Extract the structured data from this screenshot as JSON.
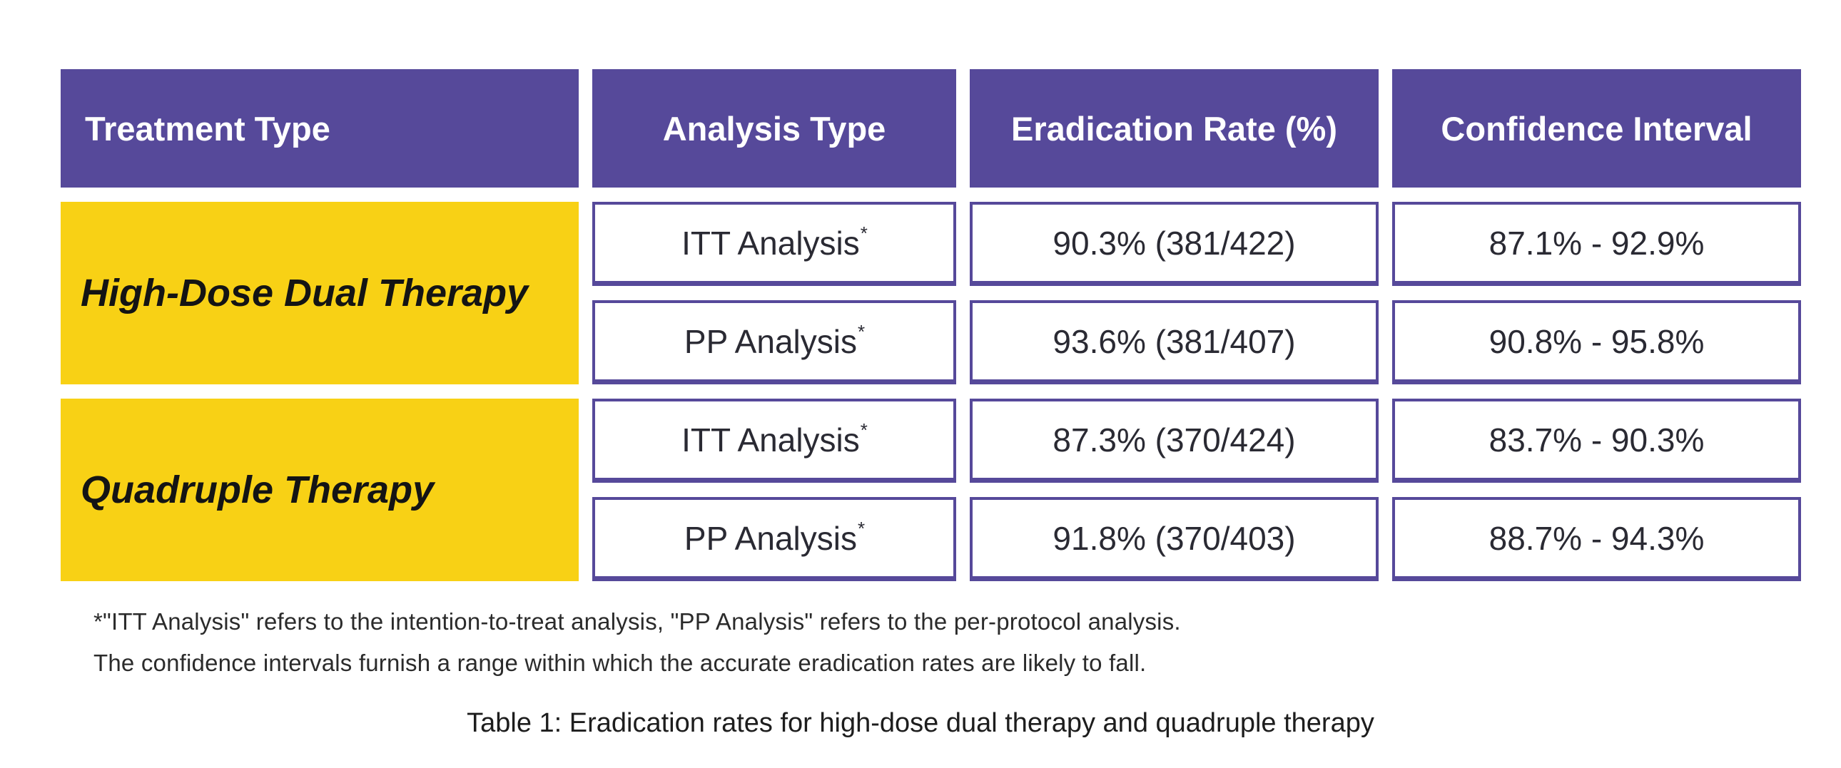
{
  "table": {
    "headers": [
      "Treatment Type",
      "Analysis Type",
      "Eradication Rate (%)",
      "Confidence Interval"
    ],
    "analysis_sup": "*",
    "groups": [
      {
        "treatment": "High-Dose Dual Therapy",
        "rows": [
          {
            "analysis": "ITT Analysis",
            "rate": "90.3% (381/422)",
            "ci": "87.1% - 92.9%"
          },
          {
            "analysis": "PP Analysis",
            "rate": "93.6% (381/407)",
            "ci": "90.8% - 95.8%"
          }
        ]
      },
      {
        "treatment": "Quadruple Therapy",
        "rows": [
          {
            "analysis": "ITT Analysis",
            "rate": "87.3% (370/424)",
            "ci": "83.7% - 90.3%"
          },
          {
            "analysis": "PP Analysis",
            "rate": "91.8% (370/403)",
            "ci": "88.7% - 94.3%"
          }
        ]
      }
    ]
  },
  "footnotes": [
    "*\"ITT Analysis\" refers to the intention-to-treat analysis, \"PP Analysis\" refers to the per-protocol analysis.",
    "The confidence intervals furnish a range within which the accurate eradication rates are likely to fall."
  ],
  "caption": "Table 1: Eradication rates for high-dose dual therapy and quadruple therapy",
  "colors": {
    "header_bg": "#56499A",
    "header_text": "#FFFFFF",
    "treatment_bg": "#F8D115",
    "treatment_text": "#141414",
    "cell_border": "#56499A",
    "cell_text": "#2A2A33",
    "page_bg": "#FFFFFF"
  },
  "chart_data": {
    "type": "table",
    "title": "Table 1: Eradication rates for high-dose dual therapy and quadruple therapy",
    "columns": [
      "Treatment Type",
      "Analysis Type",
      "Eradication Rate (%)",
      "Confidence Interval"
    ],
    "rows": [
      [
        "High-Dose Dual Therapy",
        "ITT Analysis*",
        "90.3% (381/422)",
        "87.1% - 92.9%"
      ],
      [
        "High-Dose Dual Therapy",
        "PP Analysis*",
        "93.6% (381/407)",
        "90.8% - 95.8%"
      ],
      [
        "Quadruple Therapy",
        "ITT Analysis*",
        "87.3% (370/424)",
        "83.7% - 90.3%"
      ],
      [
        "Quadruple Therapy",
        "PP Analysis*",
        "91.8% (370/403)",
        "88.7% - 94.3%"
      ]
    ],
    "eradication_rate_percent": [
      90.3,
      93.6,
      87.3,
      91.8
    ],
    "eradicated_over_total": [
      "381/422",
      "381/407",
      "370/424",
      "370/403"
    ],
    "ci_low_percent": [
      87.1,
      90.8,
      83.7,
      88.7
    ],
    "ci_high_percent": [
      92.9,
      95.8,
      90.3,
      94.3
    ]
  }
}
